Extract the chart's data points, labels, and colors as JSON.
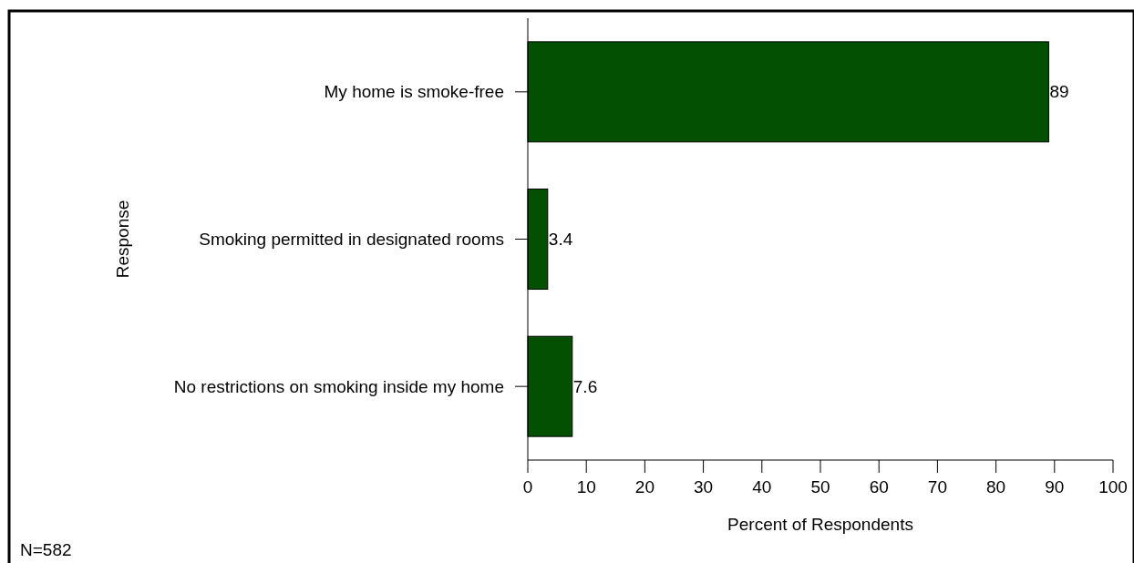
{
  "chart_data": {
    "type": "bar",
    "orientation": "horizontal",
    "categories": [
      "My home is smoke-free",
      "Smoking permitted in designated rooms",
      "No restrictions on smoking inside my home"
    ],
    "values": [
      89,
      3.4,
      7.6
    ],
    "color": "#035003",
    "xlim": [
      0,
      100
    ],
    "xticks": [
      0,
      10,
      20,
      30,
      40,
      50,
      60,
      70,
      80,
      90,
      100
    ],
    "xlabel": "Percent of Respondents",
    "ylabel": "Response",
    "data_labels": true,
    "grid": false,
    "annotations": [
      "N=582"
    ]
  }
}
